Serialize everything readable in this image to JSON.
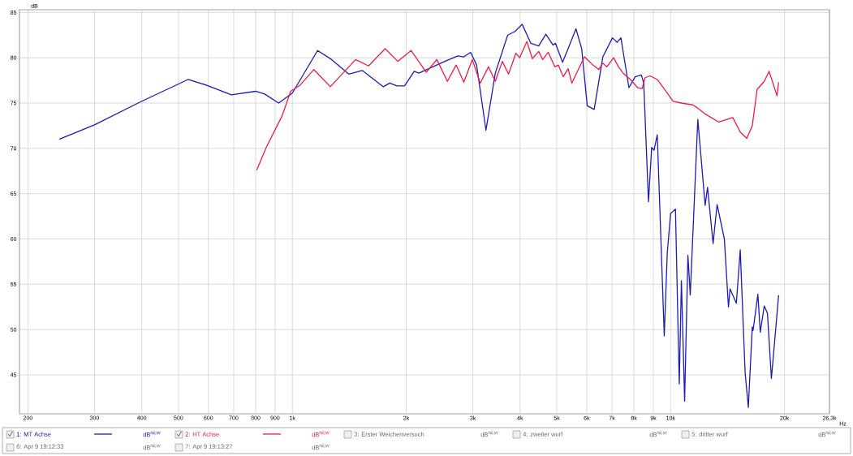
{
  "chart_data": {
    "type": "line",
    "ylabel": "dB",
    "xlabel": "Hz",
    "log": "x",
    "grid": true,
    "legend": "bottom",
    "xlim": [
      190,
      26300
    ],
    "ylim": [
      40.7,
      85.3
    ],
    "xticks": [
      200,
      300,
      400,
      500,
      600,
      700,
      800,
      900,
      {
        "value": 1000,
        "label": "1k"
      },
      {
        "value": 2000,
        "label": "2k"
      },
      {
        "value": 3000,
        "label": "3k"
      },
      {
        "value": 4000,
        "label": "4k"
      },
      {
        "value": 5000,
        "label": "5k"
      },
      {
        "value": 6000,
        "label": "6k"
      },
      {
        "value": 7000,
        "label": "7k"
      },
      {
        "value": 8000,
        "label": "8k"
      },
      {
        "value": 9000,
        "label": "9k"
      },
      {
        "value": 10000,
        "label": "10k"
      },
      {
        "value": 20000,
        "label": "20k"
      },
      {
        "value": 26300,
        "label": "26,3k"
      }
    ],
    "yticks": [
      45,
      50,
      55,
      60,
      65,
      70,
      75,
      80,
      85
    ],
    "series": [
      {
        "name": "1: MT Achse",
        "color": "#1c1cb8",
        "x": [
          242,
          300,
          400,
          530,
          600,
          690,
          800,
          845,
          920,
          1000,
          1166,
          1270,
          1410,
          1530,
          1740,
          1810,
          1890,
          1980,
          2100,
          2160,
          2530,
          2740,
          2840,
          2960,
          3070,
          3250,
          3440,
          3710,
          3880,
          4050,
          4270,
          4480,
          4680,
          4890,
          4960,
          5180,
          5430,
          5620,
          5820,
          6020,
          6280,
          6620,
          7020,
          7220,
          7390,
          7760,
          8060,
          8370,
          8490,
          8740,
          8910,
          9040,
          9220,
          9620,
          9800,
          10000,
          10300,
          10540,
          10680,
          10890,
          11110,
          11270,
          11800,
          12340,
          12520,
          12950,
          13270,
          13870,
          14220,
          14360,
          14920,
          15280,
          15740,
          16050,
          16440,
          16520,
          17010,
          17260,
          17680,
          18030,
          18470,
          18830,
          19300
        ],
        "values": [
          71.0,
          72.6,
          75.2,
          77.6,
          76.9,
          75.9,
          76.3,
          76.0,
          75.0,
          76.1,
          80.8,
          79.8,
          78.2,
          78.6,
          76.8,
          77.2,
          76.9,
          76.9,
          78.5,
          78.3,
          79.6,
          80.2,
          80.1,
          80.6,
          79.2,
          72.0,
          78.3,
          82.5,
          82.9,
          83.7,
          81.6,
          81.3,
          82.6,
          81.4,
          81.6,
          79.5,
          81.6,
          83.2,
          81.0,
          74.7,
          74.3,
          80.1,
          82.2,
          81.7,
          82.2,
          76.7,
          77.9,
          78.1,
          77.2,
          64.1,
          70.1,
          69.8,
          71.5,
          49.3,
          58.5,
          62.8,
          63.3,
          44.0,
          55.4,
          42.1,
          58.2,
          53.8,
          73.2,
          63.7,
          65.7,
          59.5,
          63.8,
          60.0,
          52.5,
          54.5,
          52.9,
          58.8,
          45.2,
          41.4,
          50.3,
          49.9,
          53.9,
          49.7,
          52.6,
          51.8,
          44.6,
          48.6,
          53.8
        ]
      },
      {
        "name": "2: HT Achse",
        "color": "#f51947",
        "x": [
          805,
          853,
          940,
          990,
          1050,
          1140,
          1260,
          1470,
          1590,
          1760,
          1900,
          2060,
          2260,
          2410,
          2570,
          2710,
          2840,
          2990,
          3140,
          3300,
          3440,
          3590,
          3730,
          3900,
          3990,
          4170,
          4310,
          4480,
          4590,
          4750,
          4940,
          5050,
          5200,
          5360,
          5480,
          5640,
          5920,
          6230,
          6460,
          6620,
          6780,
          7070,
          7280,
          7530,
          7830,
          8180,
          8410,
          8560,
          8820,
          9220,
          9570,
          10150,
          10680,
          11440,
          11740,
          12340,
          13400,
          14600,
          15280,
          15900,
          16440,
          16930,
          17680,
          18210,
          19110,
          19300
        ],
        "values": [
          67.6,
          70.1,
          73.6,
          76.3,
          77.0,
          78.7,
          76.8,
          79.8,
          79.1,
          81.0,
          79.6,
          80.8,
          78.4,
          79.8,
          77.4,
          79.2,
          77.3,
          79.8,
          77.2,
          79.0,
          77.4,
          79.6,
          78.2,
          80.5,
          80.0,
          81.8,
          79.9,
          80.7,
          79.8,
          80.6,
          79.0,
          79.2,
          77.9,
          78.8,
          77.2,
          78.3,
          80.1,
          79.2,
          78.7,
          79.4,
          79.0,
          80.0,
          79.0,
          78.2,
          77.6,
          76.7,
          76.6,
          77.8,
          78.0,
          77.6,
          76.7,
          75.2,
          75.0,
          74.8,
          74.5,
          73.8,
          72.9,
          73.4,
          71.8,
          71.1,
          72.5,
          76.5,
          77.4,
          78.5,
          75.8,
          77.3
        ]
      }
    ],
    "annotations": [
      "dB$^{NEW}$",
      "dB$^{NEW}$",
      "3: Erster Weichenversuch",
      "dB$^{NEW}$",
      "4: zweiter wurf",
      "dB$^{NEW}$",
      "5: dritter wurf",
      "dB$^{NEW}$",
      "6: Apr 9 19:12:33",
      "dB$^{NEW}$",
      "7: Apr 9 19:13:27",
      "dB$^{NEW}$"
    ]
  }
}
